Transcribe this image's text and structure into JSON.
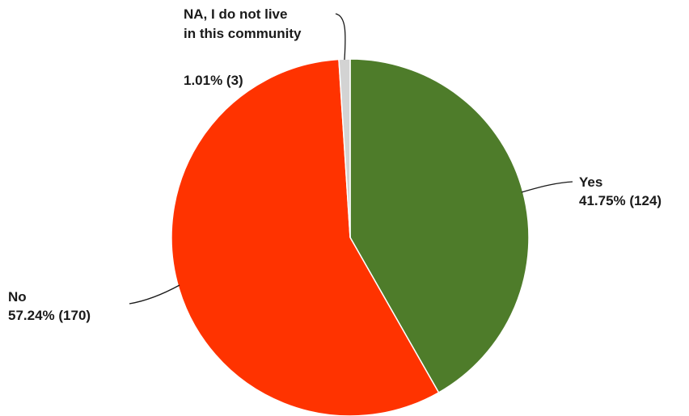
{
  "chart_data": {
    "type": "pie",
    "title": "",
    "slices": [
      {
        "name": "Yes",
        "percent_label": "41.75% (124)",
        "percent": 41.75,
        "count": 124,
        "color": "#4e7c2a"
      },
      {
        "name": "No",
        "percent_label": "57.24% (170)",
        "percent": 57.24,
        "count": 170,
        "color": "#ff3300"
      },
      {
        "name_lines": [
          "NA, I do not live",
          "in this community"
        ],
        "percent_label": "1.01% (3)",
        "percent": 1.01,
        "count": 3,
        "color": "#d3d3d3"
      }
    ],
    "legend": "none",
    "slice_border_color": "#ffffff"
  }
}
